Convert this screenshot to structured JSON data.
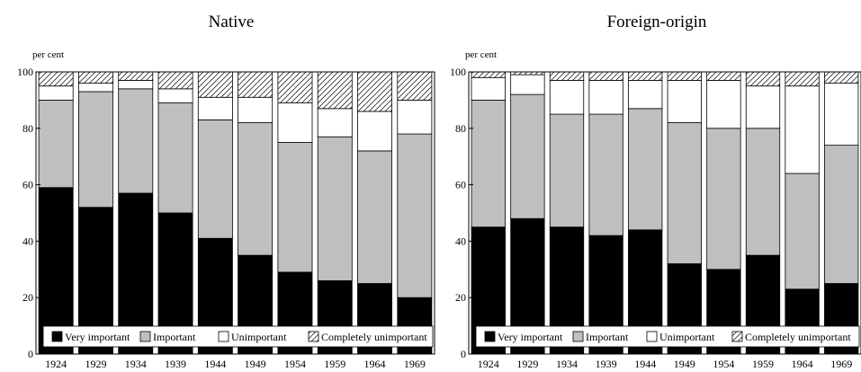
{
  "chart_data": [
    {
      "type": "bar",
      "stacked": true,
      "percent": true,
      "title": "Native",
      "ylabel": "per cent",
      "ylim": [
        0,
        100
      ],
      "yticks": [
        0,
        20,
        40,
        60,
        80,
        100
      ],
      "categories": [
        "1924",
        "1929",
        "1934",
        "1939",
        "1944",
        "1949",
        "1954",
        "1959",
        "1964",
        "1969"
      ],
      "series": [
        {
          "name": "Very important",
          "pattern": "solid",
          "color": "#000000",
          "values": [
            59,
            52,
            57,
            50,
            41,
            35,
            29,
            26,
            25,
            20
          ]
        },
        {
          "name": "Important",
          "pattern": "solid",
          "color": "#bfbfbf",
          "values": [
            31,
            41,
            37,
            39,
            42,
            47,
            46,
            51,
            47,
            58
          ]
        },
        {
          "name": "Unimportant",
          "pattern": "solid",
          "color": "#ffffff",
          "values": [
            5,
            3,
            3,
            5,
            8,
            9,
            14,
            10,
            14,
            12
          ]
        },
        {
          "name": "Completely unimportant",
          "pattern": "hatch",
          "color": "#ffffff",
          "values": [
            5,
            4,
            3,
            6,
            9,
            9,
            11,
            13,
            14,
            10
          ]
        }
      ],
      "legend": {
        "position": "bottom-inside"
      }
    },
    {
      "type": "bar",
      "stacked": true,
      "percent": true,
      "title": "Foreign-origin",
      "ylabel": "per cent",
      "ylim": [
        0,
        100
      ],
      "yticks": [
        0,
        20,
        40,
        60,
        80,
        100
      ],
      "categories": [
        "1924",
        "1929",
        "1934",
        "1939",
        "1944",
        "1949",
        "1954",
        "1959",
        "1964",
        "1969"
      ],
      "series": [
        {
          "name": "Very important",
          "pattern": "solid",
          "color": "#000000",
          "values": [
            45,
            48,
            45,
            42,
            44,
            32,
            30,
            35,
            23,
            25
          ]
        },
        {
          "name": "Important",
          "pattern": "solid",
          "color": "#bfbfbf",
          "values": [
            45,
            44,
            40,
            43,
            43,
            50,
            50,
            45,
            41,
            49
          ]
        },
        {
          "name": "Unimportant",
          "pattern": "solid",
          "color": "#ffffff",
          "values": [
            8,
            7,
            12,
            12,
            10,
            15,
            17,
            15,
            31,
            22
          ]
        },
        {
          "name": "Completely unimportant",
          "pattern": "hatch",
          "color": "#ffffff",
          "values": [
            2,
            1,
            3,
            3,
            3,
            3,
            3,
            5,
            5,
            4
          ]
        }
      ],
      "legend": {
        "position": "bottom-inside"
      }
    }
  ]
}
